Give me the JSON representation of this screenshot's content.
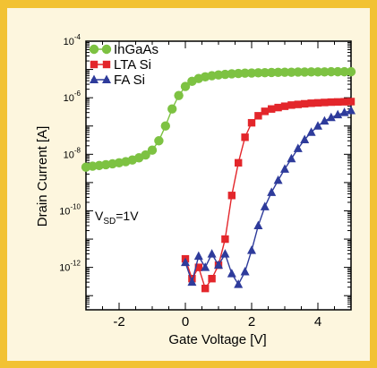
{
  "chart_data": {
    "type": "line",
    "xlabel": "Gate Voltage [V]",
    "ylabel": "Drain Current [A]",
    "xlim": [
      -3,
      5
    ],
    "ylim_log10": [
      -13.5,
      -4
    ],
    "y_scale": "log",
    "x_ticks": [
      -2,
      0,
      2,
      4
    ],
    "x_tick_labels": [
      "-2",
      "0",
      "2",
      "4"
    ],
    "y_ticks": [
      {
        "base": "10",
        "exp": "-12"
      },
      {
        "base": "10",
        "exp": "-10"
      },
      {
        "base": "10",
        "exp": "-8"
      },
      {
        "base": "10",
        "exp": "-6"
      },
      {
        "base": "10",
        "exp": "-4"
      }
    ],
    "legend_position": "top-left",
    "annotation": {
      "main": "V",
      "sub": "SD",
      "rest": "=1V"
    },
    "series": [
      {
        "name": "InGaAs",
        "color": "#7dc242",
        "marker": "circle",
        "x": [
          -3,
          -2.8,
          -2.6,
          -2.4,
          -2.2,
          -2,
          -1.8,
          -1.6,
          -1.4,
          -1.2,
          -1,
          -0.8,
          -0.6,
          -0.4,
          -0.2,
          0,
          0.2,
          0.4,
          0.6,
          0.8,
          1,
          1.2,
          1.4,
          1.6,
          1.8,
          2,
          2.2,
          2.4,
          2.6,
          2.8,
          3,
          3.2,
          3.4,
          3.6,
          3.8,
          4,
          4.2,
          4.4,
          4.6,
          4.8,
          5
        ],
        "y": [
          3.5e-09,
          3.8e-09,
          4e-09,
          4.3e-09,
          4.6e-09,
          5e-09,
          5.5e-09,
          6.3e-09,
          7.5e-09,
          9.5e-09,
          1.4e-08,
          3e-08,
          1e-07,
          4e-07,
          1.2e-06,
          2.5e-06,
          3.8e-06,
          4.8e-06,
          5.5e-06,
          6e-06,
          6.4e-06,
          6.7e-06,
          7e-06,
          7.2e-06,
          7.4e-06,
          7.5e-06,
          7.6e-06,
          7.7e-06,
          7.8e-06,
          7.9e-06,
          8e-06,
          8e-06,
          8.1e-06,
          8.1e-06,
          8.2e-06,
          8.2e-06,
          8.2e-06,
          8.3e-06,
          8.3e-06,
          8.3e-06,
          8.3e-06
        ]
      },
      {
        "name": "LTA Si",
        "color": "#e3262b",
        "marker": "square",
        "x": [
          0,
          0.2,
          0.4,
          0.6,
          0.8,
          1,
          1.2,
          1.4,
          1.6,
          1.8,
          2,
          2.2,
          2.4,
          2.6,
          2.8,
          3,
          3.2,
          3.4,
          3.6,
          3.8,
          4,
          4.2,
          4.4,
          4.6,
          4.8,
          5
        ],
        "y": [
          2e-12,
          4e-13,
          1e-12,
          1.8e-13,
          4e-13,
          1.2e-12,
          1e-11,
          3.5e-10,
          5e-09,
          4e-08,
          1.3e-07,
          2.3e-07,
          3.3e-07,
          4e-07,
          4.5e-07,
          5e-07,
          5.5e-07,
          5.8e-07,
          6.1e-07,
          6.4e-07,
          6.6e-07,
          6.8e-07,
          7e-07,
          7.1e-07,
          7.2e-07,
          7.3e-07
        ]
      },
      {
        "name": "FA Si",
        "color": "#2e3b9b",
        "marker": "triangle",
        "x": [
          0,
          0.2,
          0.4,
          0.6,
          0.8,
          1,
          1.2,
          1.4,
          1.6,
          1.8,
          2,
          2.2,
          2.4,
          2.6,
          2.8,
          3,
          3.2,
          3.4,
          3.6,
          3.8,
          4,
          4.2,
          4.4,
          4.6,
          4.8,
          5
        ],
        "y": [
          1.5e-12,
          3e-13,
          2.5e-12,
          1e-12,
          3e-12,
          1.2e-12,
          3e-12,
          6e-13,
          2.5e-13,
          7e-13,
          4e-12,
          3e-11,
          1.4e-10,
          4.5e-10,
          1.2e-09,
          3e-09,
          7e-09,
          1.6e-08,
          3.3e-08,
          6e-08,
          1e-07,
          1.5e-07,
          2e-07,
          2.5e-07,
          3e-07,
          3.5e-07
        ]
      }
    ]
  }
}
